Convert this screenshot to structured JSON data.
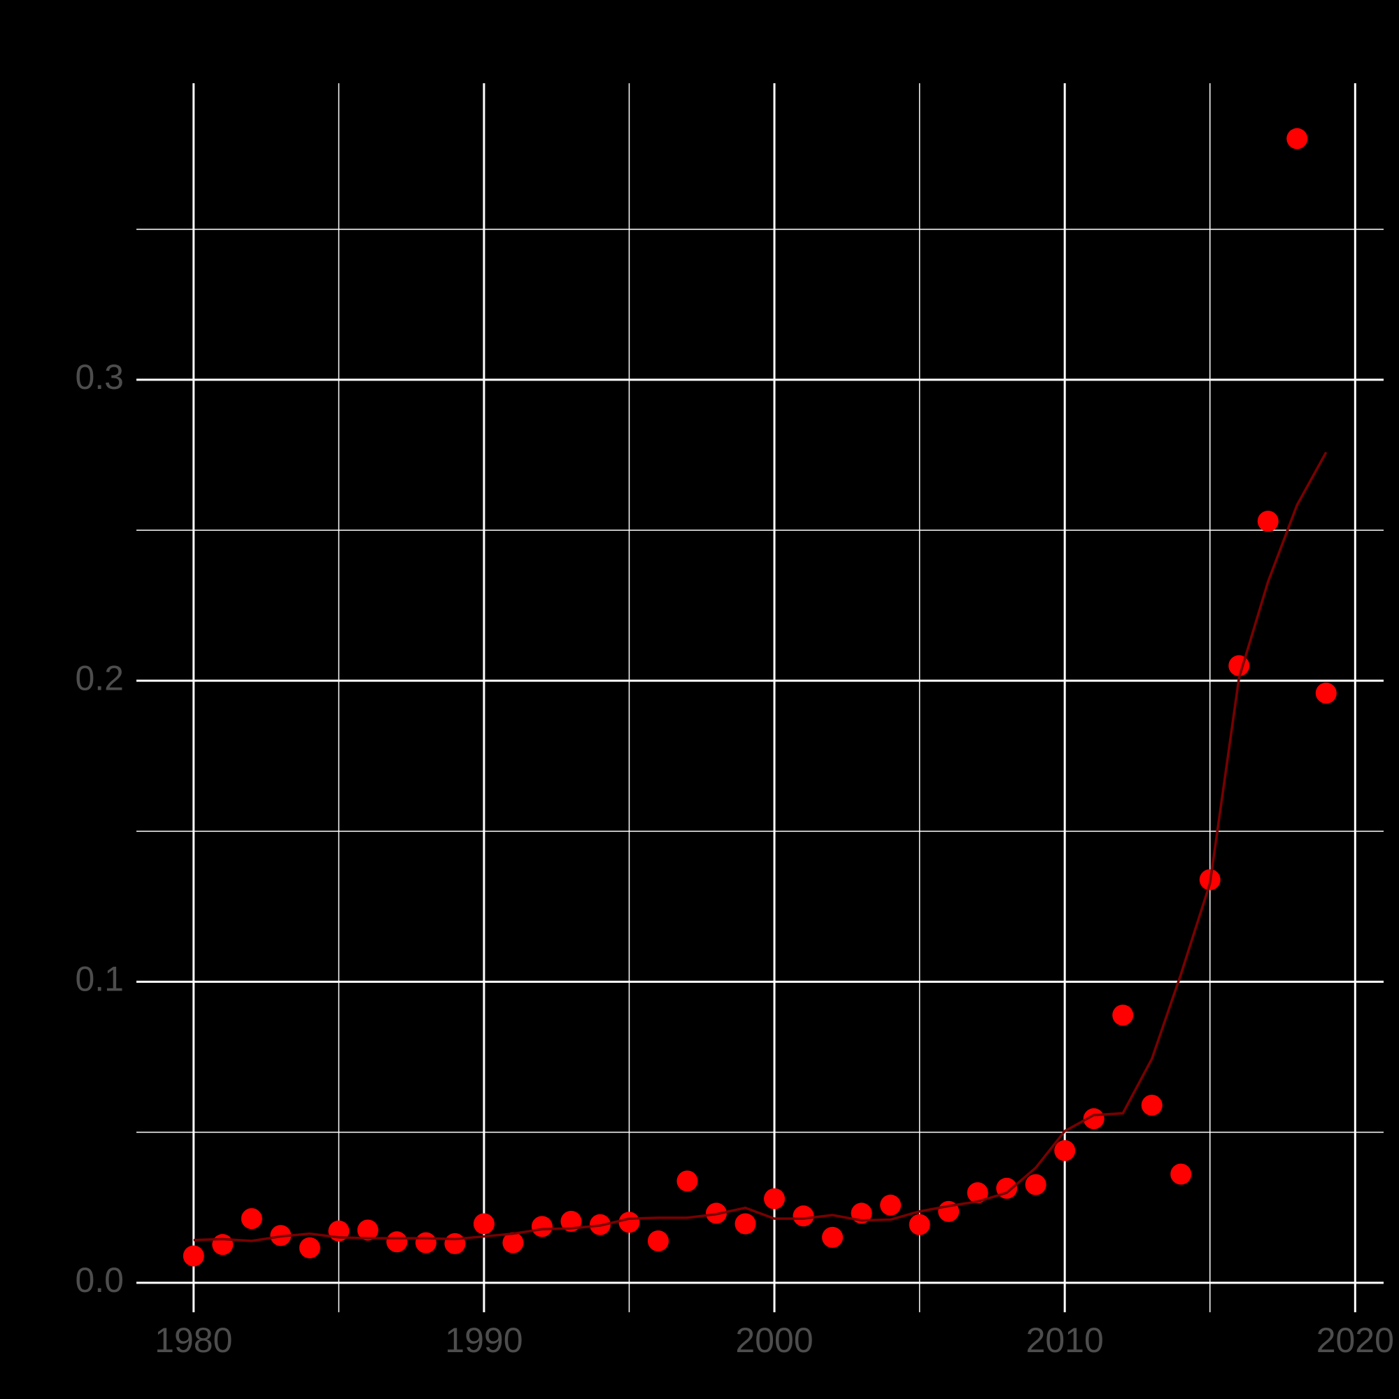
{
  "chart_data": {
    "type": "scatter",
    "x": [
      1980,
      1981,
      1982,
      1983,
      1984,
      1985,
      1986,
      1987,
      1988,
      1989,
      1990,
      1991,
      1992,
      1993,
      1994,
      1995,
      1996,
      1997,
      1998,
      1999,
      2000,
      2001,
      2002,
      2003,
      2004,
      2005,
      2006,
      2007,
      2008,
      2009,
      2010,
      2011,
      2012,
      2013,
      2014,
      2015,
      2016,
      2017,
      2018,
      2019
    ],
    "series": [
      {
        "mark": "point",
        "color": "#ff0000",
        "values": [
          0.0089,
          0.0127,
          0.0213,
          0.0157,
          0.0116,
          0.0172,
          0.0175,
          0.0136,
          0.0133,
          0.013,
          0.0196,
          0.0133,
          0.0187,
          0.0204,
          0.0193,
          0.0201,
          0.0139,
          0.0338,
          0.0231,
          0.0196,
          0.0279,
          0.0222,
          0.0151,
          0.0231,
          0.0258,
          0.0193,
          0.0237,
          0.0299,
          0.0314,
          0.0326,
          0.0439,
          0.0545,
          0.0889,
          0.059,
          0.0361,
          0.1339,
          0.205,
          0.253,
          0.3801,
          0.1959
        ]
      },
      {
        "mark": "line",
        "color": "#7a0000",
        "values": [
          0.0142,
          0.0145,
          0.0139,
          0.0154,
          0.0163,
          0.0151,
          0.0148,
          0.0148,
          0.0148,
          0.0145,
          0.0154,
          0.0163,
          0.0178,
          0.0181,
          0.019,
          0.0213,
          0.0216,
          0.0216,
          0.0228,
          0.0249,
          0.0213,
          0.0213,
          0.0225,
          0.0207,
          0.021,
          0.0237,
          0.0255,
          0.027,
          0.0299,
          0.0382,
          0.0504,
          0.0557,
          0.0563,
          0.0744,
          0.1025,
          0.1327,
          0.2009,
          0.2329,
          0.2584,
          0.2759
        ]
      }
    ],
    "xlim": [
      1978.03,
      2020.98
    ],
    "ylim": [
      -0.0098,
      0.3985
    ],
    "xticks": [
      1980,
      1990,
      2000,
      2010,
      2020
    ],
    "yticks": [
      {
        "value": 0,
        "label": "0.0"
      },
      0.1,
      0.2,
      0.3
    ],
    "xminor": [
      1985,
      1995,
      2005,
      2015
    ],
    "yminor": [
      0.05,
      0.15,
      0.25,
      0.35
    ],
    "grid": true
  }
}
